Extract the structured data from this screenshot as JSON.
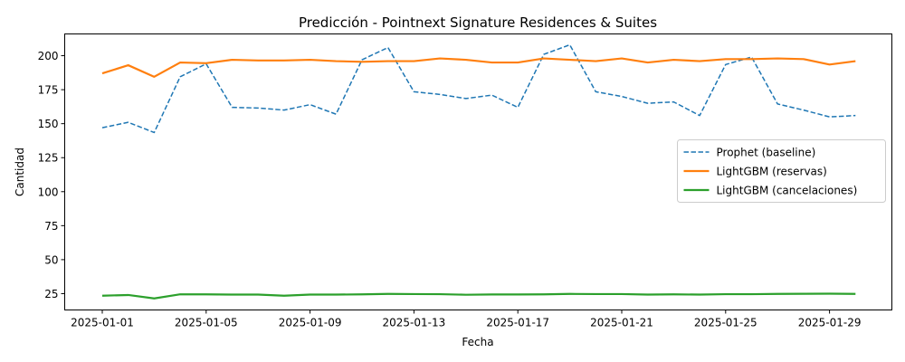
{
  "chart_data": {
    "type": "line",
    "title": "Predicción - Pointnext Signature Residences & Suites",
    "xlabel": "Fecha",
    "ylabel": "Cantidad",
    "x": [
      "2025-01-01",
      "2025-01-02",
      "2025-01-03",
      "2025-01-04",
      "2025-01-05",
      "2025-01-06",
      "2025-01-07",
      "2025-01-08",
      "2025-01-09",
      "2025-01-10",
      "2025-01-11",
      "2025-01-12",
      "2025-01-13",
      "2025-01-14",
      "2025-01-15",
      "2025-01-16",
      "2025-01-17",
      "2025-01-18",
      "2025-01-19",
      "2025-01-20",
      "2025-01-21",
      "2025-01-22",
      "2025-01-23",
      "2025-01-24",
      "2025-01-25",
      "2025-01-26",
      "2025-01-27",
      "2025-01-28",
      "2025-01-29",
      "2025-01-30"
    ],
    "x_ticks": [
      "2025-01-01",
      "2025-01-05",
      "2025-01-09",
      "2025-01-13",
      "2025-01-17",
      "2025-01-21",
      "2025-01-25",
      "2025-01-29"
    ],
    "ylim": [
      13,
      216
    ],
    "y_ticks": [
      25,
      50,
      75,
      100,
      125,
      150,
      175,
      200
    ],
    "grid": false,
    "legend_position": "center-right",
    "series": [
      {
        "name": "Prophet (baseline)",
        "color": "#1f77b4",
        "style": "dashed",
        "values": [
          147,
          151,
          143.5,
          184.5,
          194,
          162,
          161.5,
          160,
          164,
          157,
          197,
          206,
          173.5,
          171.5,
          168.5,
          171,
          162,
          201,
          208,
          173.5,
          170,
          165,
          166,
          156,
          193.5,
          199,
          164.5,
          160,
          155,
          156
        ]
      },
      {
        "name": "LightGBM (reservas)",
        "color": "#ff7f0e",
        "style": "solid",
        "values": [
          187,
          193,
          184.5,
          195,
          194.5,
          197,
          196.5,
          196.5,
          197,
          196,
          195.5,
          196,
          196,
          198,
          197,
          195,
          195,
          198,
          197,
          196,
          198,
          195,
          197,
          196,
          197.5,
          197.5,
          198,
          197.5,
          193.5,
          196
        ]
      },
      {
        "name": "LightGBM (cancelaciones)",
        "color": "#2ca02c",
        "style": "solid",
        "values": [
          23.5,
          24,
          21.5,
          24.5,
          24.5,
          24.3,
          24.3,
          23.5,
          24.3,
          24.3,
          24.5,
          24.8,
          24.7,
          24.6,
          24.2,
          24.4,
          24.4,
          24.5,
          24.8,
          24.7,
          24.7,
          24.3,
          24.5,
          24.3,
          24.6,
          24.6,
          24.8,
          24.9,
          25,
          24.8
        ]
      }
    ]
  }
}
